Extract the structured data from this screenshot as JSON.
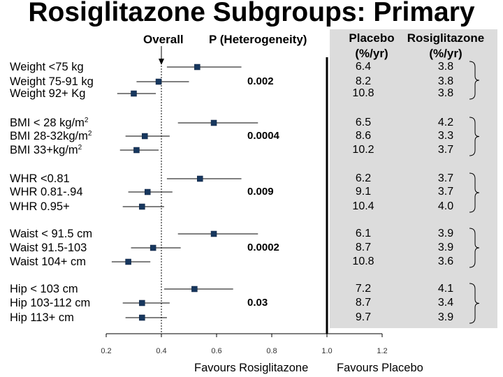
{
  "title": "Rosiglitazone Subgroups: Primary",
  "headers": {
    "overall": "Overall",
    "p_heterogeneity": "P (Heterogeneity)",
    "placebo": [
      "Placebo",
      "(%/yr)"
    ],
    "rosiglitazone": [
      "Rosiglitazone",
      "(%/yr)"
    ]
  },
  "footer": {
    "favours_left": "Favours Rosiglitazone",
    "favours_right": "Favours Placebo"
  },
  "chart_data": {
    "type": "forest",
    "xticks": [
      "0.2",
      "0.4",
      "0.6",
      "0.8",
      "1.0",
      "1.2"
    ],
    "xlim": [
      0.2,
      1.2
    ],
    "reference_line": 1.0,
    "overall_line": 0.4,
    "groups": [
      {
        "p_value": "0.002",
        "rows": [
          {
            "label": "Weight <75 kg",
            "est": 0.53,
            "lo": 0.42,
            "hi": 0.69,
            "placebo": "6.4",
            "rosi": "3.8"
          },
          {
            "label": "Weight 75-91 kg",
            "est": 0.39,
            "lo": 0.31,
            "hi": 0.5,
            "placebo": "8.2",
            "rosi": "3.8"
          },
          {
            "label": "Weight 92+ Kg",
            "est": 0.3,
            "lo": 0.24,
            "hi": 0.38,
            "placebo": "10.8",
            "rosi": "3.8"
          }
        ]
      },
      {
        "p_value": "0.0004",
        "rows": [
          {
            "label": "BMI < 28 kg/m",
            "sup": "2",
            "est": 0.59,
            "lo": 0.46,
            "hi": 0.75,
            "placebo": "6.5",
            "rosi": "4.2"
          },
          {
            "label": "BMI 28-32kg/m",
            "sup": "2",
            "est": 0.34,
            "lo": 0.27,
            "hi": 0.43,
            "placebo": "8.6",
            "rosi": "3.3"
          },
          {
            "label": "BMI 33+kg/m",
            "sup": "2",
            "est": 0.31,
            "lo": 0.25,
            "hi": 0.39,
            "placebo": "10.2",
            "rosi": "3.7"
          }
        ]
      },
      {
        "p_value": "0.009",
        "rows": [
          {
            "label": "WHR <0.81",
            "est": 0.54,
            "lo": 0.42,
            "hi": 0.69,
            "placebo": "6.2",
            "rosi": "3.7"
          },
          {
            "label": "WHR 0.81-.94",
            "est": 0.35,
            "lo": 0.28,
            "hi": 0.44,
            "placebo": "9.1",
            "rosi": "3.7"
          },
          {
            "label": "WHR 0.95+",
            "est": 0.33,
            "lo": 0.26,
            "hi": 0.41,
            "placebo": "10.4",
            "rosi": "4.0"
          }
        ]
      },
      {
        "p_value": "0.0002",
        "rows": [
          {
            "label": "Waist < 91.5 cm",
            "est": 0.59,
            "lo": 0.46,
            "hi": 0.75,
            "placebo": "6.1",
            "rosi": "3.9"
          },
          {
            "label": "Waist 91.5-103",
            "est": 0.37,
            "lo": 0.29,
            "hi": 0.47,
            "placebo": "8.7",
            "rosi": "3.9"
          },
          {
            "label": "Waist 104+ cm",
            "est": 0.28,
            "lo": 0.22,
            "hi": 0.36,
            "placebo": "10.8",
            "rosi": "3.6"
          }
        ]
      },
      {
        "p_value": "0.03",
        "rows": [
          {
            "label": "Hip < 103 cm",
            "est": 0.52,
            "lo": 0.41,
            "hi": 0.66,
            "placebo": "7.2",
            "rosi": "4.1"
          },
          {
            "label": "Hip 103-112 cm",
            "est": 0.33,
            "lo": 0.26,
            "hi": 0.43,
            "placebo": "8.7",
            "rosi": "3.4"
          },
          {
            "label": "Hip 113+ cm",
            "est": 0.33,
            "lo": 0.27,
            "hi": 0.42,
            "placebo": "9.7",
            "rosi": "3.9"
          }
        ]
      }
    ]
  }
}
